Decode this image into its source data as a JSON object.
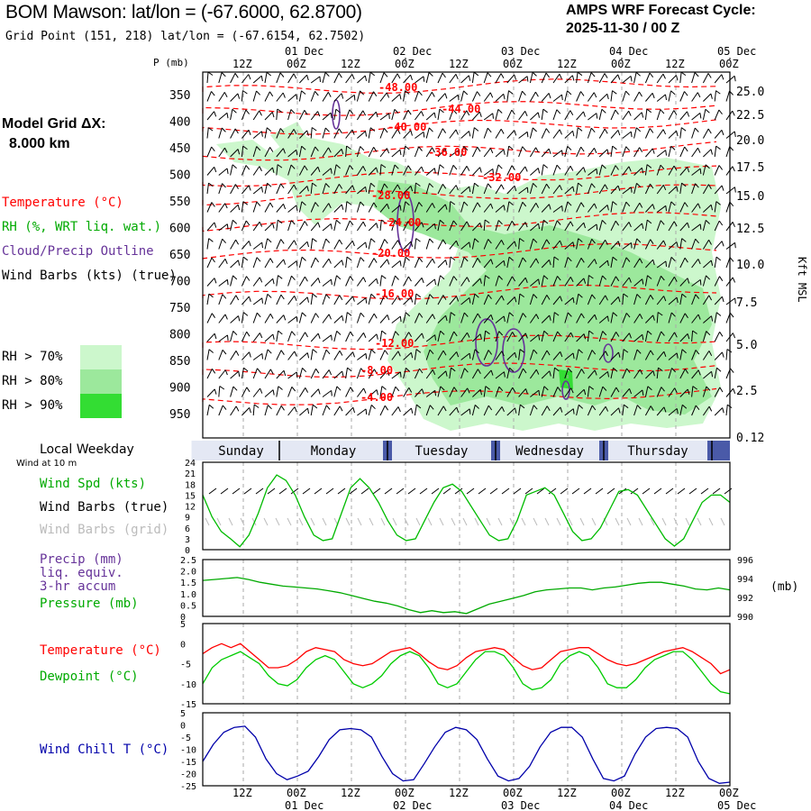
{
  "header": {
    "title": "BOM Mawson:  lat/lon = (-67.6000, 62.8700)",
    "grid_point": "Grid Point (151, 218) lat/lon = (-67.6154, 62.7502)",
    "cycle_line1": "AMPS WRF Forecast Cycle:",
    "cycle_line2": "2025-11-30 / 00  Z"
  },
  "legend": {
    "model_grid_label": "Model Grid ΔX:",
    "model_grid_value": "8.000 km",
    "temperature": "Temperature (°C)",
    "rh": "RH (%, WRT liq. wat.)",
    "cloud": "Cloud/Precip Outline",
    "wind_barbs": "Wind Barbs (kts) (true)",
    "rh70": "RH > 70%",
    "rh80": "RH > 80%",
    "rh90": "RH > 90%",
    "local_weekday": "Local Weekday",
    "wind_at_10m": "Wind at 10 m",
    "wind_spd": "Wind Spd (kts)",
    "wind_barbs_true": "Wind Barbs (true)",
    "wind_barbs_grid": "Wind Barbs (grid)",
    "precip1": "Precip (mm)",
    "precip2": "liq. equiv.",
    "precip3": "3-hr accum",
    "pressure": "Pressure (mb)",
    "temp2": "Temperature (°C)",
    "dewpoint": "Dewpoint (°C)",
    "windchill": "Wind Chill T (°C)",
    "p_axis_title": "P (mb)",
    "kft_title": "Kft MSL",
    "mb_right": "(mb)"
  },
  "colors": {
    "temperature": "#ff0000",
    "rh70": "#ccf7cc",
    "rh80": "#9ce89c",
    "rh90": "#33dd33",
    "cloud": "#663399",
    "wind_spd": "#00bb00",
    "pressure": "#00aa00",
    "dewpoint": "#00cc00",
    "windchill": "#0000aa",
    "weekday_band": "#4a5aa8",
    "grid_barbs": "#bbbbbb"
  },
  "time_axis": {
    "top_hours": [
      "12Z",
      "00Z",
      "12Z",
      "00Z",
      "12Z",
      "00Z",
      "12Z",
      "00Z",
      "12Z",
      "00Z"
    ],
    "top_dates": [
      "01 Dec",
      "02 Dec",
      "03 Dec",
      "04 Dec",
      "05 Dec"
    ],
    "bottom_hours": [
      "12Z",
      "00Z",
      "12Z",
      "00Z",
      "12Z",
      "00Z",
      "12Z",
      "00Z",
      "12Z",
      "00Z"
    ],
    "bottom_dates": [
      "01 Dec",
      "02 Dec",
      "03 Dec",
      "04 Dec",
      "05 Dec"
    ],
    "weekdays": [
      "Sunday",
      "Monday",
      "Tuesday",
      "Wednesday",
      "Thursday"
    ]
  },
  "chart_data": [
    {
      "type": "heatmap",
      "name": "cross-section",
      "y_left_label": "P (mb)",
      "y_right_label": "Kft MSL",
      "pressure_ticks": [
        "350",
        "400",
        "450",
        "500",
        "550",
        "600",
        "650",
        "700",
        "750",
        "800",
        "850",
        "900",
        "950"
      ],
      "height_ticks": [
        "25.0",
        "22.5",
        "20.0",
        "17.5",
        "15.0",
        "12.5",
        "10.0",
        "7.5",
        "5.0",
        "2.5",
        "0.12"
      ],
      "temperature_labels": [
        "-48.00",
        "-44.00",
        "-40.00",
        "-36.00",
        "-32.00",
        "-28.00",
        "-24.00",
        "-20.00",
        "-16.00",
        "-12.00",
        "-8.00",
        "-4.00"
      ]
    },
    {
      "type": "line",
      "name": "wind speed",
      "yticks": [
        "0",
        "3",
        "6",
        "9",
        "12",
        "15",
        "18",
        "21",
        "24"
      ],
      "ylim": [
        0,
        24
      ],
      "values": [
        15,
        9,
        5,
        3,
        0.8,
        4,
        10,
        17,
        20.5,
        19,
        15,
        9,
        4,
        2.5,
        3,
        10,
        17,
        19.5,
        17,
        13,
        8,
        4,
        2.5,
        3,
        8,
        13,
        17,
        18,
        16,
        12,
        8,
        4,
        2.5,
        3,
        8,
        15,
        16,
        17,
        15,
        10,
        5,
        2.5,
        3,
        6,
        11,
        16,
        16.5,
        15,
        11,
        7,
        3,
        1,
        3,
        8,
        13,
        15,
        15,
        13
      ]
    },
    {
      "type": "line",
      "name": "pressure",
      "yticks_left": [
        "0",
        "0.5",
        "1.0",
        "1.5",
        "2.0",
        "2.5"
      ],
      "yticks_right": [
        "996",
        "994",
        "992",
        "990"
      ],
      "ylim": [
        990,
        996
      ],
      "values": [
        993.8,
        993.9,
        994,
        994.1,
        993.9,
        993.6,
        993.4,
        993.2,
        993.1,
        993,
        992.9,
        992.7,
        992.5,
        992.2,
        991.9,
        991.6,
        991.4,
        991.1,
        990.7,
        990.4,
        990.6,
        990.4,
        990.5,
        990.3,
        990.8,
        991.3,
        991.6,
        991.9,
        992.2,
        992.6,
        992.8,
        992.9,
        993,
        993,
        992.8,
        993,
        993.1,
        993.3,
        993.5,
        993.6,
        993.6,
        993.4,
        993.2,
        992.9,
        992.8,
        993,
        992.8
      ]
    },
    {
      "type": "line",
      "name": "temperature and dewpoint",
      "yticks": [
        "5",
        "0",
        "-5",
        "-10",
        "-15"
      ],
      "ylim": [
        -15,
        5
      ],
      "series": [
        {
          "name": "Temperature",
          "values": [
            -2.5,
            -1,
            0,
            -1,
            0,
            -2,
            -4,
            -6,
            -6,
            -5.5,
            -4,
            -2,
            -1,
            -1.5,
            -2,
            -4,
            -5,
            -5.5,
            -5,
            -3.5,
            -2,
            -1.5,
            -1,
            -2.5,
            -4.5,
            -6,
            -6.5,
            -5.5,
            -3.5,
            -2,
            -1.5,
            -1,
            -1.5,
            -3.5,
            -5.5,
            -6.5,
            -6,
            -4,
            -2,
            -1.5,
            -1,
            -1,
            -2.5,
            -4,
            -5,
            -5.5,
            -5,
            -4,
            -3,
            -2,
            -1.5,
            -1,
            -2,
            -3.5,
            -5,
            -7.5,
            -6.5
          ]
        },
        {
          "name": "Dewpoint",
          "values": [
            -10,
            -6,
            -4,
            -3,
            -2,
            -3.5,
            -5,
            -8,
            -10,
            -10.5,
            -9,
            -6,
            -4,
            -3,
            -4,
            -7,
            -10,
            -11,
            -10,
            -8,
            -5,
            -3,
            -2,
            -3,
            -6,
            -10,
            -11,
            -10,
            -7,
            -4,
            -2,
            -2,
            -3,
            -6,
            -10,
            -11.5,
            -11,
            -9,
            -5,
            -3,
            -2,
            -3,
            -6,
            -10,
            -11,
            -11,
            -9,
            -6,
            -4,
            -3,
            -2,
            -2,
            -4,
            -7,
            -10,
            -12,
            -12.5
          ]
        }
      ]
    },
    {
      "type": "line",
      "name": "wind chill",
      "yticks": [
        "5",
        "0",
        "-5",
        "-10",
        "-15",
        "-20",
        "-25"
      ],
      "ylim": [
        -25,
        5
      ],
      "values": [
        -15,
        -8,
        -3,
        -1,
        -0.5,
        -5,
        -14,
        -20,
        -22.5,
        -21,
        -19,
        -13,
        -6,
        -2,
        -1.5,
        -2,
        -5,
        -13,
        -20,
        -23,
        -22.5,
        -16,
        -9,
        -3,
        -1,
        -2,
        -6,
        -14,
        -21,
        -23,
        -22,
        -17,
        -9,
        -3,
        -1,
        -1,
        -5,
        -14,
        -22,
        -23,
        -21,
        -12,
        -5,
        -1.5,
        -1,
        -1.5,
        -5,
        -15,
        -22,
        -24,
        -23.5
      ]
    }
  ]
}
